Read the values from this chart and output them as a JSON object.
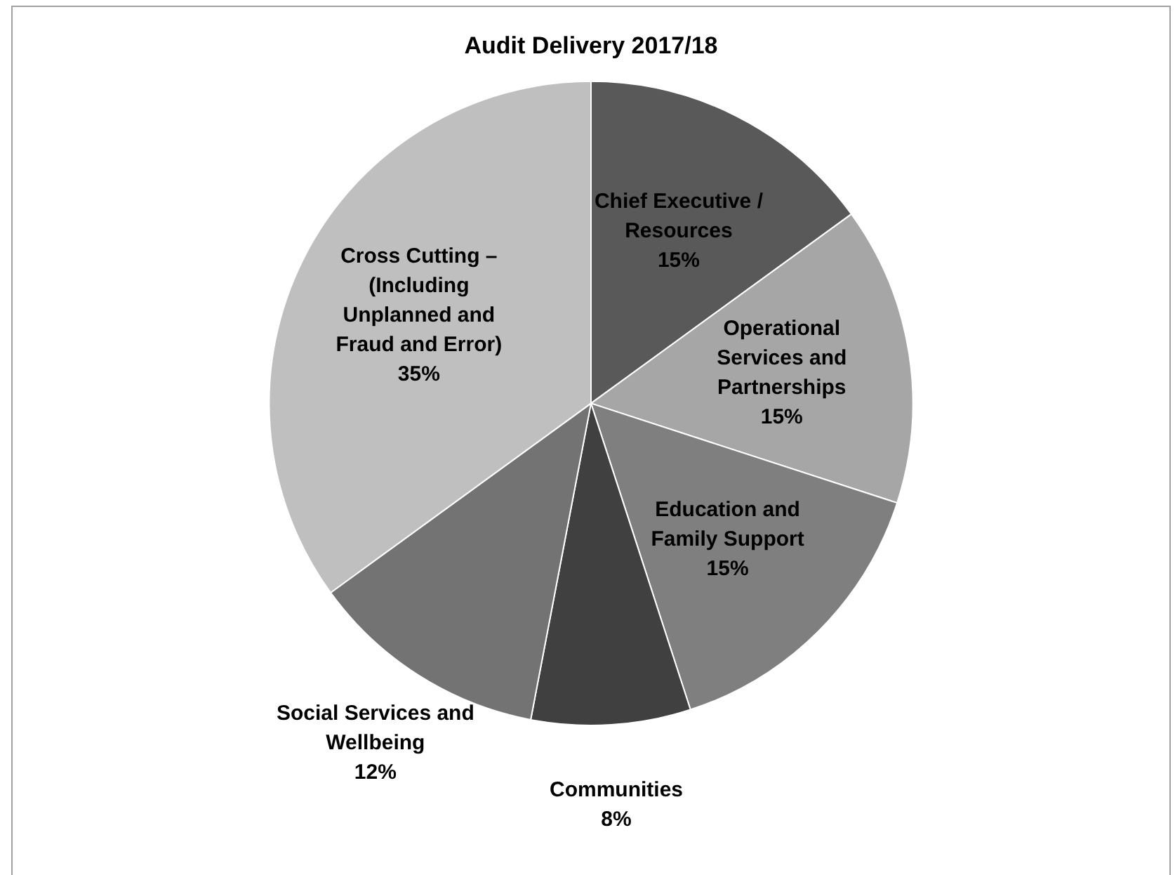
{
  "chart_data": {
    "type": "pie",
    "title": "Audit Delivery 2017/18",
    "categories": [
      "Chief Executive / Resources",
      "Operational Services and Partnerships",
      "Education and Family Support",
      "Communities",
      "Social Services and Wellbeing",
      "Cross Cutting – (Including Unplanned and Fraud and Error)"
    ],
    "values": [
      15,
      15,
      15,
      8,
      12,
      35
    ],
    "value_labels": [
      "15%",
      "15%",
      "15%",
      "8%",
      "12%",
      "35%"
    ],
    "colors": [
      "#595959",
      "#a6a6a6",
      "#7f7f7f",
      "#404040",
      "#737373",
      "#bfbfbf"
    ],
    "legend": false
  }
}
